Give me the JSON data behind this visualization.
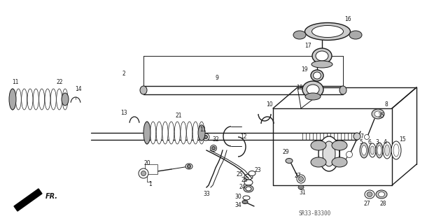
{
  "bg_color": "#ffffff",
  "line_color": "#1a1a1a",
  "part_number": "SR33-B3300",
  "fig_width": 6.4,
  "fig_height": 3.19,
  "dpi": 100,
  "gray": "#888888",
  "darkgray": "#555555",
  "lightgray": "#cccccc"
}
